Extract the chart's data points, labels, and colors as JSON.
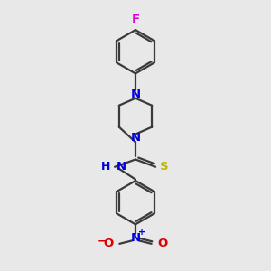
{
  "bg_color": "#e8e8e8",
  "bond_color": "#3a3a3a",
  "N_color": "#0000dd",
  "F_color": "#dd00dd",
  "S_color": "#bbbb00",
  "O_color": "#dd0000",
  "line_width": 1.6,
  "font_size": 9.5,
  "fig_size": [
    3.0,
    3.0
  ],
  "dpi": 100,
  "xlim": [
    0,
    10
  ],
  "ylim": [
    0,
    10
  ]
}
